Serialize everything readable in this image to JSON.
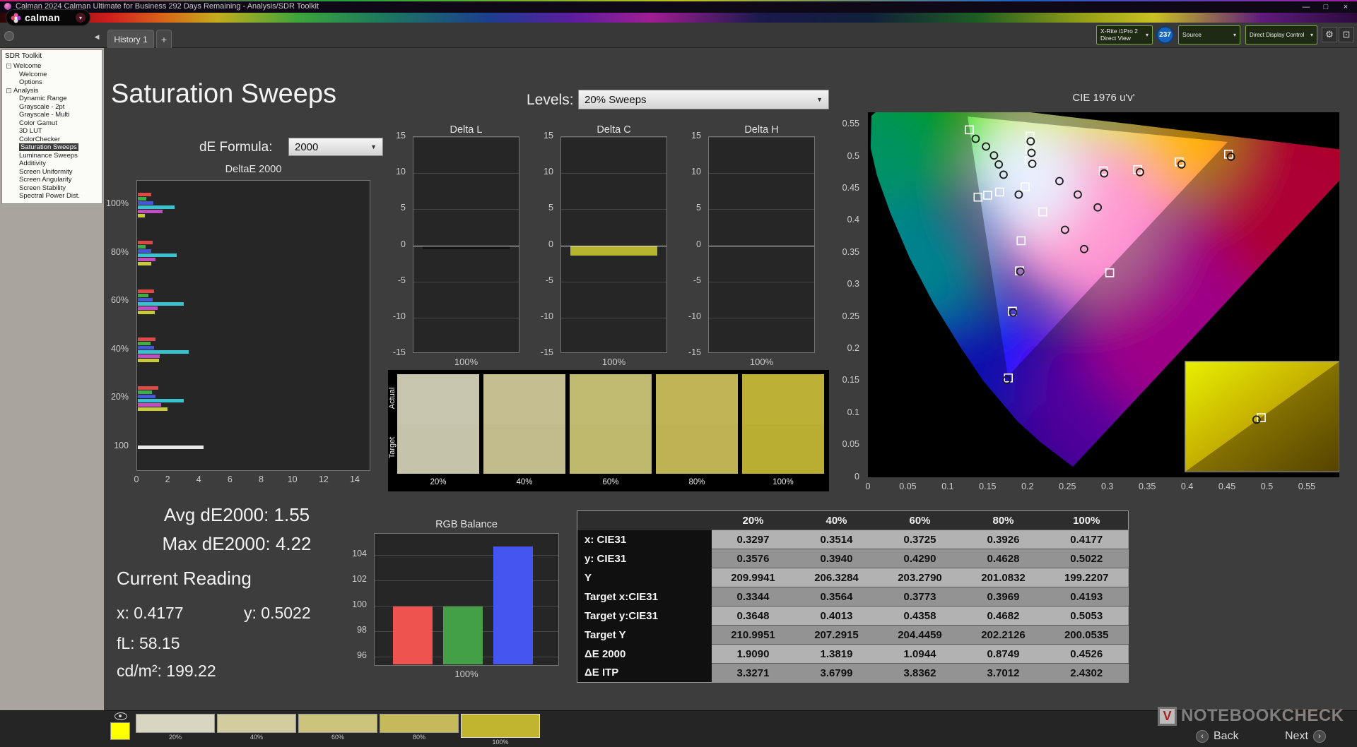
{
  "window": {
    "title": "Calman 2024 Calman Ultimate for Business 292 Days Remaining - Analysis/SDR Toolkit",
    "controls": {
      "minimize": "—",
      "maximize": "□",
      "close": "×"
    }
  },
  "brand": {
    "logo_text": "calman",
    "chevron": "▾"
  },
  "tabs": {
    "history": "History 1",
    "add": "+"
  },
  "device_bar": {
    "meter_line1": "X-Rite i1Pro 2",
    "meter_line2": "Direct View",
    "badge": "237",
    "source_label": "Source",
    "display_control_label": "Direct Display Control",
    "gear": "⚙",
    "pattern": "⊡"
  },
  "sidebar": {
    "title": "SDR Toolkit",
    "tree": [
      {
        "label": "Welcome",
        "depth": 0,
        "parent": true
      },
      {
        "label": "Welcome",
        "depth": 1
      },
      {
        "label": "Options",
        "depth": 1
      },
      {
        "label": "Analysis",
        "depth": 0,
        "parent": true
      },
      {
        "label": "Dynamic Range",
        "depth": 1
      },
      {
        "label": "Grayscale - 2pt",
        "depth": 1
      },
      {
        "label": "Grayscale - Multi",
        "depth": 1
      },
      {
        "label": "Color Gamut",
        "depth": 1
      },
      {
        "label": "3D LUT",
        "depth": 1
      },
      {
        "label": "ColorChecker",
        "depth": 1
      },
      {
        "label": "Saturation Sweeps",
        "depth": 1,
        "selected": true
      },
      {
        "label": "Luminance Sweeps",
        "depth": 1
      },
      {
        "label": "Additivity",
        "depth": 1
      },
      {
        "label": "Screen Uniformity",
        "depth": 1
      },
      {
        "label": "Screen Angularity",
        "depth": 1
      },
      {
        "label": "Screen Stability",
        "depth": 1
      },
      {
        "label": "Spectral Power Dist.",
        "depth": 1
      }
    ]
  },
  "page": {
    "heading": "Saturation Sweeps",
    "levels_label": "Levels:",
    "levels_value": "20% Sweeps",
    "de_formula_label": "dE Formula:",
    "de_formula_value": "2000"
  },
  "stats": {
    "avg": "Avg dE2000: 1.55",
    "max": "Max dE2000: 4.22",
    "current_reading_title": "Current Reading",
    "x": "x: 0.4177",
    "y": "y: 0.5022",
    "fl": "fL: 58.15",
    "cdm2": "cd/m²: 199.22"
  },
  "swatches": {
    "actual_label": "Actual",
    "target_label": "Target",
    "items": [
      {
        "label": "20%",
        "actual": "#c7c5ae",
        "target": "#c5c3aa"
      },
      {
        "label": "40%",
        "actual": "#c4be90",
        "target": "#c2bc8c"
      },
      {
        "label": "60%",
        "actual": "#c1bb72",
        "target": "#bfb96e"
      },
      {
        "label": "80%",
        "actual": "#bfb556",
        "target": "#bdb352"
      },
      {
        "label": "100%",
        "actual": "#bcb036",
        "target": "#baae32"
      }
    ]
  },
  "table": {
    "columns": [
      "20%",
      "40%",
      "60%",
      "80%",
      "100%"
    ],
    "rows": [
      {
        "label": "x: CIE31",
        "values": [
          "0.3297",
          "0.3514",
          "0.3725",
          "0.3926",
          "0.4177"
        ]
      },
      {
        "label": "y: CIE31",
        "values": [
          "0.3576",
          "0.3940",
          "0.4290",
          "0.4628",
          "0.5022"
        ]
      },
      {
        "label": "Y",
        "values": [
          "209.9941",
          "206.3284",
          "203.2790",
          "201.0832",
          "199.2207"
        ]
      },
      {
        "label": "Target x:CIE31",
        "values": [
          "0.3344",
          "0.3564",
          "0.3773",
          "0.3969",
          "0.4193"
        ]
      },
      {
        "label": "Target y:CIE31",
        "values": [
          "0.3648",
          "0.4013",
          "0.4358",
          "0.4682",
          "0.5053"
        ]
      },
      {
        "label": "Target Y",
        "values": [
          "210.9951",
          "207.2915",
          "204.4459",
          "202.2126",
          "200.0535"
        ]
      },
      {
        "label": "ΔE 2000",
        "values": [
          "1.9090",
          "1.3819",
          "1.0944",
          "0.8749",
          "0.4526"
        ]
      },
      {
        "label": "ΔE ITP",
        "values": [
          "3.3271",
          "3.6799",
          "3.8362",
          "3.7012",
          "2.4302"
        ]
      }
    ]
  },
  "bottom_bar": {
    "first_patch_color": "#ffff00",
    "swatches": [
      {
        "label": "20%",
        "color": "#d8d6c0"
      },
      {
        "label": "40%",
        "color": "#d2cc9e"
      },
      {
        "label": "60%",
        "color": "#ccc47c"
      },
      {
        "label": "80%",
        "color": "#c5ba59"
      },
      {
        "label": "100%",
        "color": "#c1b42f",
        "selected": true
      }
    ],
    "back_label": "Back",
    "next_label": "Next",
    "watermark_1": "NOTEBOOK",
    "watermark_2": "CHECK",
    "watermark_logo": "V"
  },
  "chart_data": [
    {
      "id": "saturation_de",
      "type": "bar",
      "orientation": "horizontal",
      "title": "DeltaE 2000",
      "xlim": [
        0,
        15
      ],
      "xticks": [
        0,
        2,
        4,
        6,
        8,
        10,
        12,
        14
      ],
      "colors": {
        "red": "#e04848",
        "green": "#3fae4a",
        "blue": "#4656d8",
        "cyan": "#39c3cf",
        "magenta": "#c14ec1",
        "yellow": "#c9c93e",
        "white": "#e8e8e8"
      },
      "groups": [
        {
          "label": "100%",
          "bars": [
            {
              "c": "red",
              "v": 0.85
            },
            {
              "c": "green",
              "v": 0.55
            },
            {
              "c": "blue",
              "v": 1.0
            },
            {
              "c": "cyan",
              "v": 2.35
            },
            {
              "c": "magenta",
              "v": 1.6
            },
            {
              "c": "yellow",
              "v": 0.45
            }
          ]
        },
        {
          "label": "80%",
          "bars": [
            {
              "c": "red",
              "v": 0.95
            },
            {
              "c": "green",
              "v": 0.5
            },
            {
              "c": "blue",
              "v": 0.85
            },
            {
              "c": "cyan",
              "v": 2.5
            },
            {
              "c": "magenta",
              "v": 1.15
            },
            {
              "c": "yellow",
              "v": 0.87
            }
          ]
        },
        {
          "label": "60%",
          "bars": [
            {
              "c": "red",
              "v": 1.05
            },
            {
              "c": "green",
              "v": 0.7
            },
            {
              "c": "blue",
              "v": 0.95
            },
            {
              "c": "cyan",
              "v": 2.95
            },
            {
              "c": "magenta",
              "v": 1.25
            },
            {
              "c": "yellow",
              "v": 1.09
            }
          ]
        },
        {
          "label": "40%",
          "bars": [
            {
              "c": "red",
              "v": 1.15
            },
            {
              "c": "green",
              "v": 0.8
            },
            {
              "c": "blue",
              "v": 1.05
            },
            {
              "c": "cyan",
              "v": 3.25
            },
            {
              "c": "magenta",
              "v": 1.4
            },
            {
              "c": "yellow",
              "v": 1.38
            }
          ]
        },
        {
          "label": "20%",
          "bars": [
            {
              "c": "red",
              "v": 1.3
            },
            {
              "c": "green",
              "v": 0.9
            },
            {
              "c": "blue",
              "v": 1.15
            },
            {
              "c": "cyan",
              "v": 2.95
            },
            {
              "c": "magenta",
              "v": 1.5
            },
            {
              "c": "yellow",
              "v": 1.91
            }
          ]
        },
        {
          "label": "100",
          "bars": [
            {
              "c": "white",
              "v": 4.22
            }
          ]
        }
      ]
    },
    {
      "id": "delta_l",
      "type": "bar",
      "title": "Delta L",
      "ylim": [
        -15,
        15
      ],
      "yticks": [
        15,
        10,
        5,
        0,
        -5,
        -10,
        -15
      ],
      "xlabel": "100%",
      "value": -0.4,
      "bar_color": "#121212"
    },
    {
      "id": "delta_c",
      "type": "bar",
      "title": "Delta C",
      "ylim": [
        -15,
        15
      ],
      "yticks": [
        15,
        10,
        5,
        0,
        -5,
        -10,
        -15
      ],
      "xlabel": "100%",
      "value": -1.3,
      "bar_color": "#b5b52e"
    },
    {
      "id": "delta_h",
      "type": "bar",
      "title": "Delta H",
      "ylim": [
        -15,
        15
      ],
      "yticks": [
        15,
        10,
        5,
        0,
        -5,
        -10,
        -15
      ],
      "xlabel": "100%",
      "value": 0,
      "bar_color": "#444444"
    },
    {
      "id": "rgb_balance",
      "type": "bar",
      "title": "RGB Balance",
      "categories": [
        "Red",
        "Green",
        "Blue"
      ],
      "values": [
        99.8,
        99.8,
        104.55
      ],
      "colors": [
        "#ef5350",
        "#43a047",
        "#4455f0"
      ],
      "ylim": [
        95.2,
        105.7
      ],
      "yticks": [
        104,
        102,
        100,
        98,
        96
      ],
      "xlabel": "100%"
    },
    {
      "id": "cie_1976",
      "type": "scatter",
      "title": "CIE 1976 u'v'",
      "xlim": [
        0,
        0.591
      ],
      "ylim": [
        0,
        0.569
      ],
      "xticks": [
        "0",
        "0.05",
        "0.1",
        "0.15",
        "0.2",
        "0.25",
        "0.3",
        "0.35",
        "0.4",
        "0.45",
        "0.5",
        "0.55"
      ],
      "yticks": [
        "0.55",
        "0.5",
        "0.45",
        "0.4",
        "0.35",
        "0.3",
        "0.25",
        "0.2",
        "0.15",
        "0.1",
        "0.05",
        "0"
      ],
      "targets": [
        [
          0.127,
          0.542
        ],
        [
          0.203,
          0.532
        ],
        [
          0.203,
          0.512
        ],
        [
          0.202,
          0.494
        ],
        [
          0.295,
          0.478
        ],
        [
          0.338,
          0.48
        ],
        [
          0.39,
          0.492
        ],
        [
          0.452,
          0.504
        ],
        [
          0.197,
          0.453
        ],
        [
          0.165,
          0.445
        ],
        [
          0.15,
          0.44
        ],
        [
          0.138,
          0.437
        ],
        [
          0.219,
          0.414
        ],
        [
          0.192,
          0.369
        ],
        [
          0.19,
          0.322
        ],
        [
          0.303,
          0.319
        ],
        [
          0.181,
          0.259
        ],
        [
          0.176,
          0.155
        ],
        [
          0.493,
          0.093
        ]
      ],
      "measured": [
        [
          0.135,
          0.528
        ],
        [
          0.148,
          0.516
        ],
        [
          0.158,
          0.502
        ],
        [
          0.164,
          0.488
        ],
        [
          0.17,
          0.472
        ],
        [
          0.204,
          0.524
        ],
        [
          0.205,
          0.506
        ],
        [
          0.206,
          0.489
        ],
        [
          0.24,
          0.462
        ],
        [
          0.263,
          0.441
        ],
        [
          0.288,
          0.421
        ],
        [
          0.247,
          0.386
        ],
        [
          0.271,
          0.356
        ],
        [
          0.189,
          0.441
        ],
        [
          0.191,
          0.321
        ],
        [
          0.182,
          0.257
        ],
        [
          0.174,
          0.152
        ],
        [
          0.296,
          0.474
        ],
        [
          0.341,
          0.476
        ],
        [
          0.393,
          0.488
        ],
        [
          0.455,
          0.5
        ],
        [
          0.487,
          0.09
        ]
      ]
    }
  ]
}
